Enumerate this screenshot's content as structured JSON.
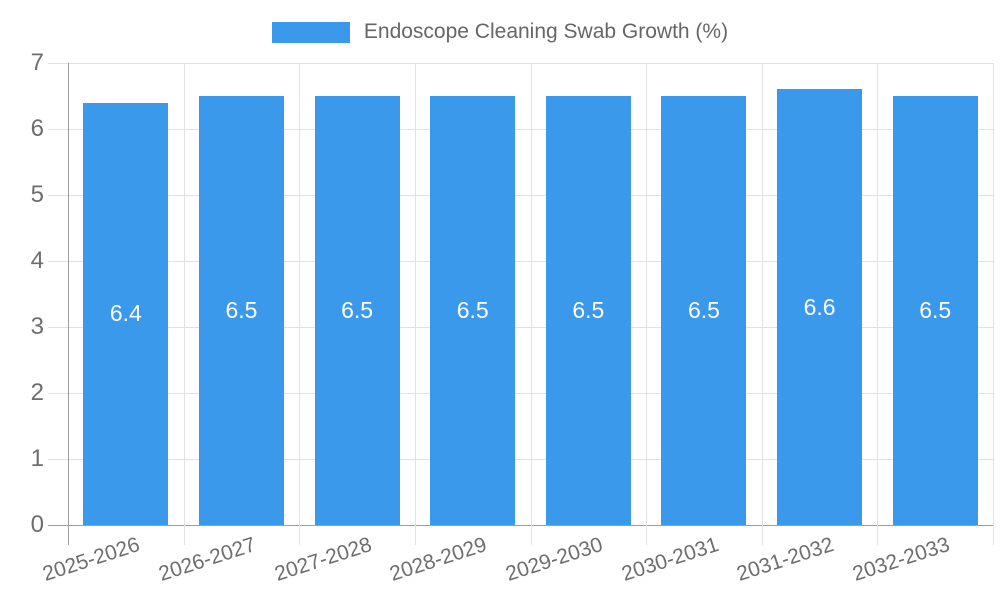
{
  "legend": {
    "label": "Endoscope Cleaning Swab Growth (%)"
  },
  "chart_data": {
    "type": "bar",
    "title": "Endoscope Cleaning Swab Growth (%)",
    "categories": [
      "2025-2026",
      "2026-2027",
      "2027-2028",
      "2028-2029",
      "2029-2030",
      "2030-2031",
      "2031-2032",
      "2032-2033"
    ],
    "values": [
      6.4,
      6.5,
      6.5,
      6.5,
      6.5,
      6.5,
      6.6,
      6.5
    ],
    "bar_labels": [
      "6.4",
      "6.5",
      "6.5",
      "6.5",
      "6.5",
      "6.5",
      "6.6",
      "6.5"
    ],
    "xlabel": "",
    "ylabel": "",
    "ylim": [
      0,
      7
    ],
    "yticks": [
      0,
      1,
      2,
      3,
      4,
      5,
      6,
      7
    ],
    "grid": true,
    "legend_position": "top",
    "colors": {
      "bar": "#3B99EC",
      "grid": "#E2E2E2",
      "axis": "#9E9E9E",
      "tick_text": "#6E6E6E",
      "bar_label_text": "#FFFFFF"
    }
  }
}
